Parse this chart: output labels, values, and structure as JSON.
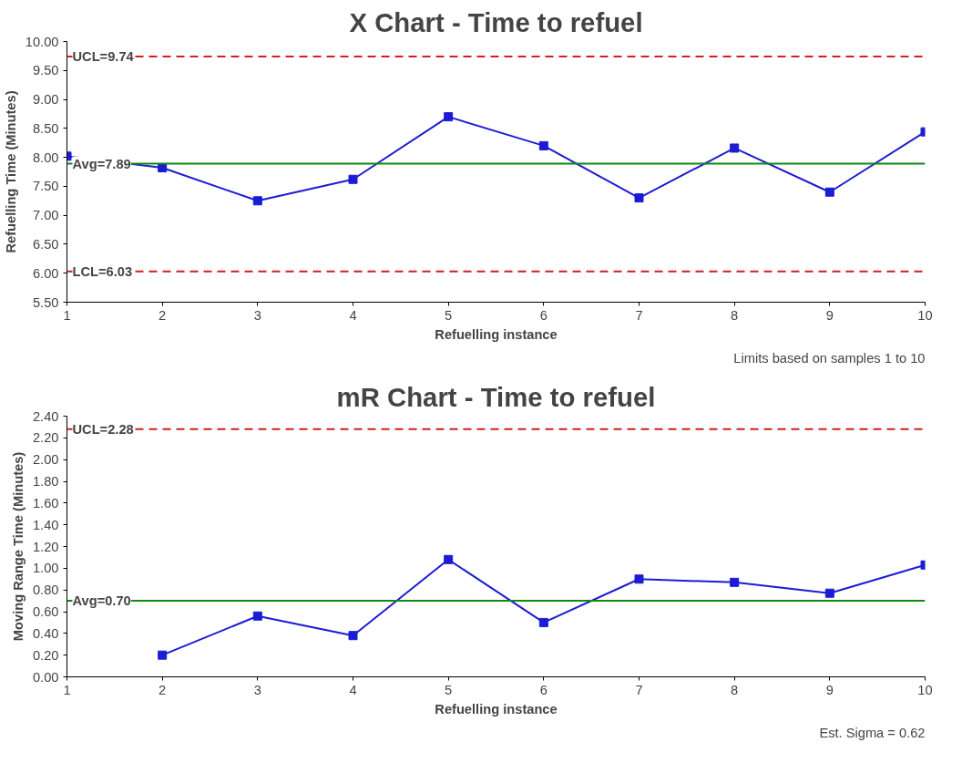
{
  "chart_data": [
    {
      "type": "line",
      "title": "X Chart - Time to refuel",
      "xlabel": "Refuelling instance",
      "ylabel": "Refuelling Time (Minutes)",
      "x": [
        1,
        2,
        3,
        4,
        5,
        6,
        7,
        8,
        9,
        10
      ],
      "series": [
        {
          "color": "#1c1cd4",
          "values": [
            8.02,
            7.82,
            7.25,
            7.62,
            8.7,
            8.2,
            7.3,
            8.16,
            7.4,
            8.44
          ]
        }
      ],
      "marker": "square",
      "grid": false,
      "xlim": [
        1,
        10
      ],
      "xticks": [
        1,
        2,
        3,
        4,
        5,
        6,
        7,
        8,
        9,
        10
      ],
      "ylim": [
        5.5,
        10
      ],
      "yticks": [
        {
          "value": 5.5,
          "label": "5.50"
        },
        {
          "value": 6,
          "label": "6.00"
        },
        {
          "value": 6.5,
          "label": "6.50"
        },
        {
          "value": 7,
          "label": "7.00"
        },
        {
          "value": 7.5,
          "label": "7.50"
        },
        {
          "value": 8,
          "label": "8.00"
        },
        {
          "value": 8.5,
          "label": "8.50"
        },
        {
          "value": 9,
          "label": "9.00"
        },
        {
          "value": 9.5,
          "label": "9.50"
        },
        {
          "value": 10,
          "label": "10.00"
        }
      ],
      "ref_lines": [
        {
          "axis": "y",
          "value": 9.74,
          "label": "UCL=9.74",
          "color": "#d02020",
          "line_style": "dashed"
        },
        {
          "axis": "y",
          "value": 7.89,
          "label": "Avg=7.89",
          "color": "#108a10",
          "line_style": "solid"
        },
        {
          "axis": "y",
          "value": 6.03,
          "label": "LCL=6.03",
          "color": "#d02020",
          "line_style": "dashed"
        }
      ],
      "annotations": [
        "Limits based on samples 1 to 10"
      ]
    },
    {
      "type": "line",
      "title": "mR Chart - Time to refuel",
      "xlabel": "Refuelling instance",
      "ylabel": "Moving Range Time (Minutes)",
      "x": [
        2,
        3,
        4,
        5,
        6,
        7,
        8,
        9,
        10
      ],
      "series": [
        {
          "color": "#1c1cd4",
          "values": [
            0.2,
            0.56,
            0.38,
            1.08,
            0.5,
            0.9,
            0.87,
            0.77,
            1.03
          ]
        }
      ],
      "marker": "square",
      "grid": false,
      "xlim": [
        1,
        10
      ],
      "xticks": [
        1,
        2,
        3,
        4,
        5,
        6,
        7,
        8,
        9,
        10
      ],
      "ylim": [
        0,
        2.4
      ],
      "yticks": [
        {
          "value": 0,
          "label": "0.00"
        },
        {
          "value": 0.2,
          "label": "0.20"
        },
        {
          "value": 0.4,
          "label": "0.40"
        },
        {
          "value": 0.6,
          "label": "0.60"
        },
        {
          "value": 0.8,
          "label": "0.80"
        },
        {
          "value": 1.0,
          "label": "1.00"
        },
        {
          "value": 1.2,
          "label": "1.20"
        },
        {
          "value": 1.4,
          "label": "1.40"
        },
        {
          "value": 1.6,
          "label": "1.60"
        },
        {
          "value": 1.8,
          "label": "1.80"
        },
        {
          "value": 2.0,
          "label": "2.00"
        },
        {
          "value": 2.2,
          "label": "2.20"
        },
        {
          "value": 2.4,
          "label": "2.40"
        }
      ],
      "ref_lines": [
        {
          "axis": "y",
          "value": 2.28,
          "label": "UCL=2.28",
          "color": "#d02020",
          "line_style": "dashed"
        },
        {
          "axis": "y",
          "value": 0.7,
          "label": "Avg=0.70",
          "color": "#108a10",
          "line_style": "solid"
        }
      ],
      "annotations": [
        "Est. Sigma = 0.62"
      ]
    }
  ]
}
